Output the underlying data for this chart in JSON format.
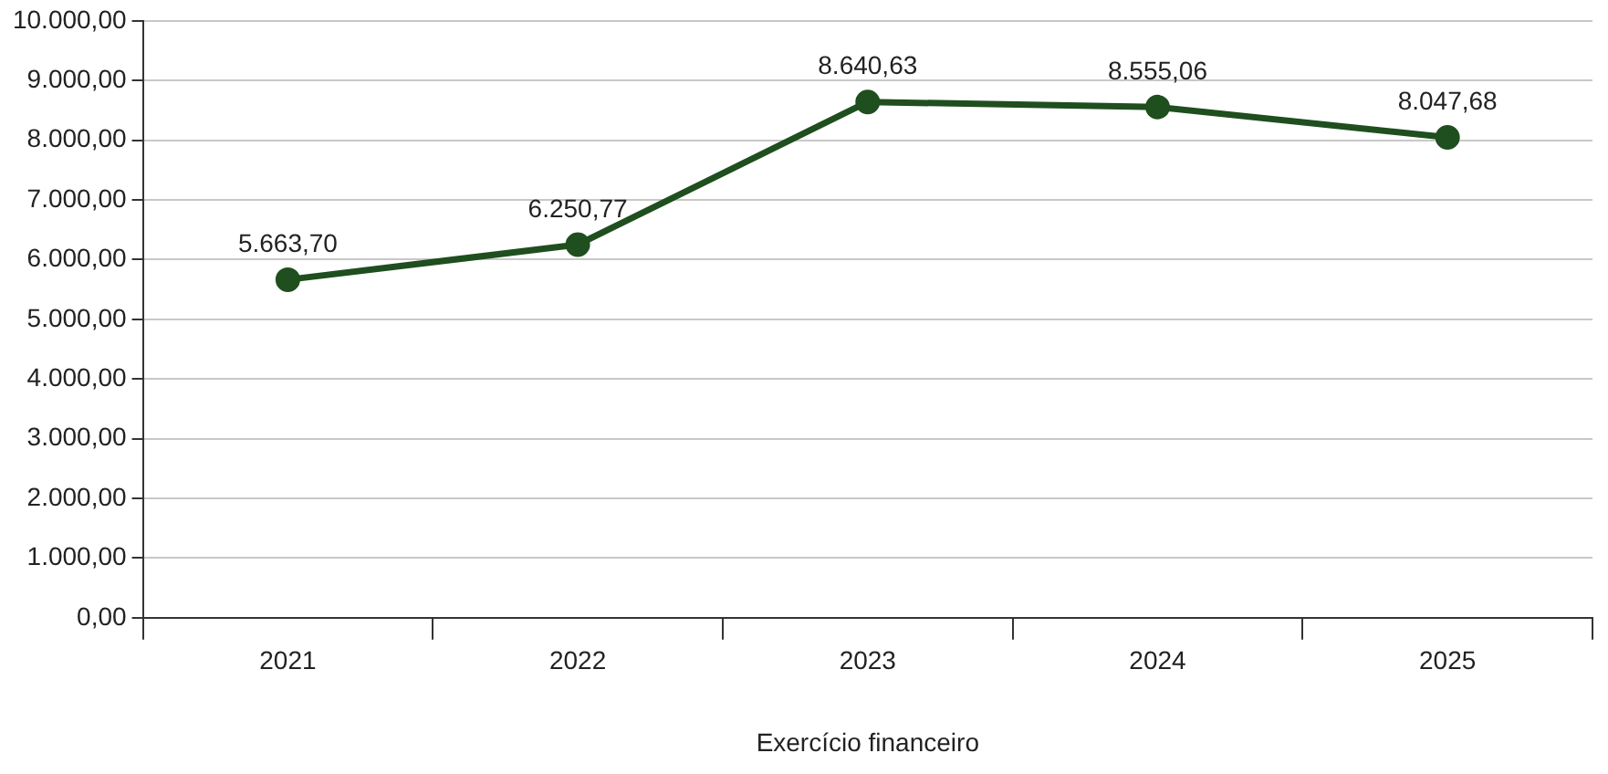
{
  "chart_data": {
    "type": "line",
    "xlabel": "Exercício financeiro",
    "categories": [
      "2021",
      "2022",
      "2023",
      "2024",
      "2025"
    ],
    "series": [
      {
        "color": "#1f4e1f",
        "values": [
          5663.7,
          6250.77,
          8640.63,
          8555.06,
          8047.68
        ],
        "value_labels": [
          "5.663,70",
          "6.250,77",
          "8.640,63",
          "8.555,06",
          "8.047,68"
        ]
      }
    ],
    "ylim": [
      0,
      10000
    ],
    "yticks": [
      {
        "value": 0,
        "label": "0,00"
      },
      {
        "value": 1000,
        "label": "1.000,00"
      },
      {
        "value": 2000,
        "label": "2.000,00"
      },
      {
        "value": 3000,
        "label": "3.000,00"
      },
      {
        "value": 4000,
        "label": "4.000,00"
      },
      {
        "value": 5000,
        "label": "5.000,00"
      },
      {
        "value": 6000,
        "label": "6.000,00"
      },
      {
        "value": 7000,
        "label": "7.000,00"
      },
      {
        "value": 8000,
        "label": "8.000,00"
      },
      {
        "value": 9000,
        "label": "9.000,00"
      },
      {
        "value": 10000,
        "label": "10.000,00"
      }
    ],
    "grid": "y",
    "marker": "circle",
    "line_style": "solid",
    "legend": false
  }
}
